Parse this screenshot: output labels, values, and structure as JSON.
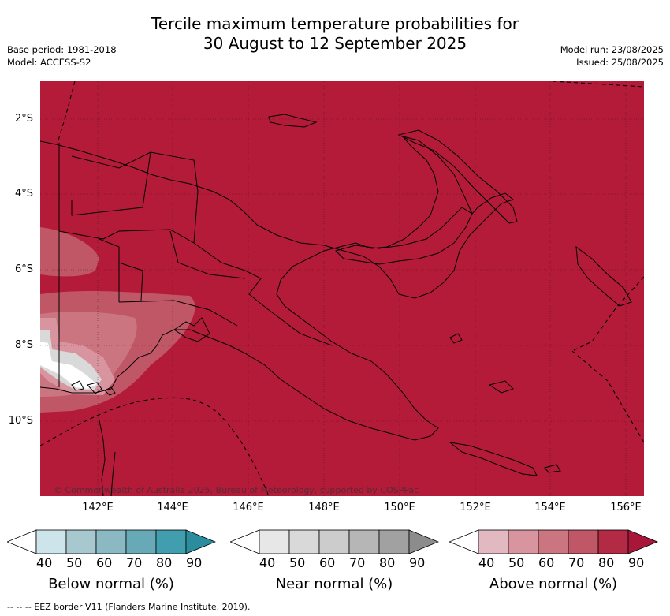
{
  "title": {
    "line1": "Tercile maximum temperature probabilities for",
    "line2": "30 August to 12 September 2025"
  },
  "info_left": {
    "base_period": "Base period: 1981-2018",
    "model": "Model: ACCESS-S2"
  },
  "info_right": {
    "model_run": "Model run: 23/08/2025",
    "issued": "Issued: 25/08/2025"
  },
  "map": {
    "latitude_labels": [
      "2°S",
      "4°S",
      "6°S",
      "8°S",
      "10°S"
    ],
    "longitude_labels": [
      "142°E",
      "144°E",
      "146°E",
      "148°E",
      "150°E",
      "152°E",
      "154°E",
      "156°E"
    ],
    "copyright": "© Commonwealth of Australia 2025, Bureau of Meteorology, supported by COSPPac",
    "background_color": "#b31b39",
    "land_outline_color": "#000000"
  },
  "colorbars": [
    {
      "label": "Below normal (%)",
      "ticks": [
        "40",
        "50",
        "60",
        "70",
        "80",
        "90"
      ],
      "colors": [
        "#ffffff",
        "#cde4ea",
        "#a7c8cf",
        "#8ab8c3",
        "#68a9b7",
        "#419eaf",
        "#2b8c9e"
      ]
    },
    {
      "label": "Near normal (%)",
      "ticks": [
        "40",
        "50",
        "60",
        "70",
        "80",
        "90"
      ],
      "colors": [
        "#ffffff",
        "#e7e7e7",
        "#d9d9d9",
        "#cccccc",
        "#b6b6b6",
        "#a1a1a1",
        "#8c8c8c"
      ]
    },
    {
      "label": "Above normal (%)",
      "ticks": [
        "40",
        "50",
        "60",
        "70",
        "80",
        "90"
      ],
      "colors": [
        "#ffffff",
        "#e3b9c1",
        "#d8959f",
        "#ca7580",
        "#c05767",
        "#b32a45",
        "#a8163a"
      ]
    }
  ],
  "footnote": "-- -- -- EEZ border V11 (Flanders Marine Institute, 2019)."
}
